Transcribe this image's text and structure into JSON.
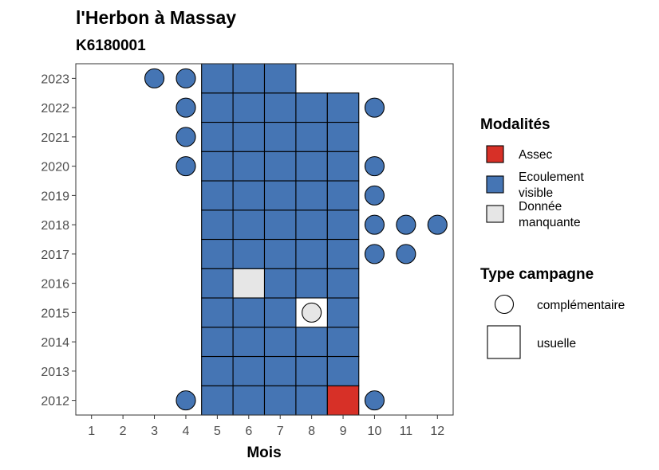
{
  "chart_data": {
    "type": "heatmap",
    "title": "l'Herbon à Massay",
    "subtitle": "K6180001",
    "xlabel": "Mois",
    "ylabel": "",
    "x_ticks": [
      "1",
      "2",
      "3",
      "4",
      "5",
      "6",
      "7",
      "8",
      "9",
      "10",
      "11",
      "12"
    ],
    "y_ticks": [
      "2012",
      "2013",
      "2014",
      "2015",
      "2016",
      "2017",
      "2018",
      "2019",
      "2020",
      "2021",
      "2022",
      "2023"
    ],
    "xlim": [
      0.5,
      12.5
    ],
    "ylim": [
      2011.5,
      2023.5
    ],
    "grid": false,
    "legend_position": "right",
    "colors": {
      "Assec": "#d73027",
      "Ecoulement visible": "#4575b4",
      "Donnée manquante": "#e6e6e6"
    },
    "legend_modalites": {
      "title": "Modalités",
      "items": [
        {
          "key": "Assec",
          "lines": [
            "Assec"
          ]
        },
        {
          "key": "Ecoulement visible",
          "lines": [
            "Ecoulement",
            "visible"
          ]
        },
        {
          "key": "Donnée manquante",
          "lines": [
            "Donnée",
            "manquante"
          ]
        }
      ]
    },
    "legend_type": {
      "title": "Type campagne",
      "items": [
        {
          "shape": "circle",
          "label": "complémentaire"
        },
        {
          "shape": "square",
          "label": "usuelle"
        }
      ]
    },
    "usuelle": [
      {
        "year": 2012,
        "months": [
          5,
          6,
          7,
          8,
          9
        ],
        "values": [
          "Ecoulement visible",
          "Ecoulement visible",
          "Ecoulement visible",
          "Ecoulement visible",
          "Assec"
        ]
      },
      {
        "year": 2013,
        "months": [
          5,
          6,
          7,
          8,
          9
        ],
        "values": [
          "Ecoulement visible",
          "Ecoulement visible",
          "Ecoulement visible",
          "Ecoulement visible",
          "Ecoulement visible"
        ]
      },
      {
        "year": 2014,
        "months": [
          5,
          6,
          7,
          8,
          9
        ],
        "values": [
          "Ecoulement visible",
          "Ecoulement visible",
          "Ecoulement visible",
          "Ecoulement visible",
          "Ecoulement visible"
        ]
      },
      {
        "year": 2015,
        "months": [
          5,
          6,
          7,
          9
        ],
        "values": [
          "Ecoulement visible",
          "Ecoulement visible",
          "Ecoulement visible",
          "Ecoulement visible"
        ]
      },
      {
        "year": 2016,
        "months": [
          5,
          6,
          7,
          8,
          9
        ],
        "values": [
          "Ecoulement visible",
          "Donnée manquante",
          "Ecoulement visible",
          "Ecoulement visible",
          "Ecoulement visible"
        ]
      },
      {
        "year": 2017,
        "months": [
          5,
          6,
          7,
          8,
          9
        ],
        "values": [
          "Ecoulement visible",
          "Ecoulement visible",
          "Ecoulement visible",
          "Ecoulement visible",
          "Ecoulement visible"
        ]
      },
      {
        "year": 2018,
        "months": [
          5,
          6,
          7,
          8,
          9
        ],
        "values": [
          "Ecoulement visible",
          "Ecoulement visible",
          "Ecoulement visible",
          "Ecoulement visible",
          "Ecoulement visible"
        ]
      },
      {
        "year": 2019,
        "months": [
          5,
          6,
          7,
          8,
          9
        ],
        "values": [
          "Ecoulement visible",
          "Ecoulement visible",
          "Ecoulement visible",
          "Ecoulement visible",
          "Ecoulement visible"
        ]
      },
      {
        "year": 2020,
        "months": [
          5,
          6,
          7,
          8,
          9
        ],
        "values": [
          "Ecoulement visible",
          "Ecoulement visible",
          "Ecoulement visible",
          "Ecoulement visible",
          "Ecoulement visible"
        ]
      },
      {
        "year": 2021,
        "months": [
          5,
          6,
          7,
          8,
          9
        ],
        "values": [
          "Ecoulement visible",
          "Ecoulement visible",
          "Ecoulement visible",
          "Ecoulement visible",
          "Ecoulement visible"
        ]
      },
      {
        "year": 2022,
        "months": [
          5,
          6,
          7,
          8,
          9
        ],
        "values": [
          "Ecoulement visible",
          "Ecoulement visible",
          "Ecoulement visible",
          "Ecoulement visible",
          "Ecoulement visible"
        ]
      },
      {
        "year": 2023,
        "months": [
          5,
          6,
          7
        ],
        "values": [
          "Ecoulement visible",
          "Ecoulement visible",
          "Ecoulement visible"
        ]
      }
    ],
    "complementaire": [
      {
        "year": 2012,
        "month": 4,
        "value": "Ecoulement visible"
      },
      {
        "year": 2012,
        "month": 10,
        "value": "Ecoulement visible"
      },
      {
        "year": 2015,
        "month": 8,
        "value": "Donnée manquante"
      },
      {
        "year": 2017,
        "month": 10,
        "value": "Ecoulement visible"
      },
      {
        "year": 2017,
        "month": 11,
        "value": "Ecoulement visible"
      },
      {
        "year": 2018,
        "month": 10,
        "value": "Ecoulement visible"
      },
      {
        "year": 2018,
        "month": 11,
        "value": "Ecoulement visible"
      },
      {
        "year": 2018,
        "month": 12,
        "value": "Ecoulement visible"
      },
      {
        "year": 2019,
        "month": 10,
        "value": "Ecoulement visible"
      },
      {
        "year": 2020,
        "month": 4,
        "value": "Ecoulement visible"
      },
      {
        "year": 2020,
        "month": 10,
        "value": "Ecoulement visible"
      },
      {
        "year": 2021,
        "month": 4,
        "value": "Ecoulement visible"
      },
      {
        "year": 2022,
        "month": 4,
        "value": "Ecoulement visible"
      },
      {
        "year": 2022,
        "month": 10,
        "value": "Ecoulement visible"
      },
      {
        "year": 2023,
        "month": 3,
        "value": "Ecoulement visible"
      },
      {
        "year": 2023,
        "month": 4,
        "value": "Ecoulement visible"
      }
    ]
  }
}
